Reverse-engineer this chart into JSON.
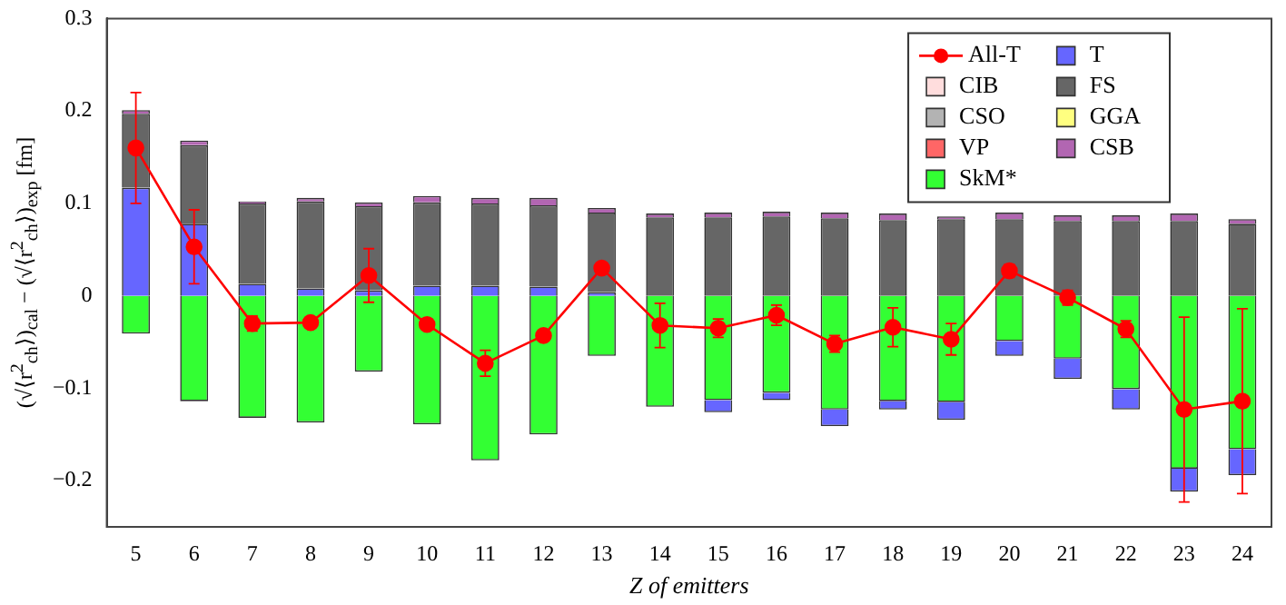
{
  "chart_data": {
    "type": "bar",
    "stacked": true,
    "xlabel": "Z of emitters",
    "ylabel": "(√⟨r$^{2}$$_{ch}$⟩)$_{cal}$ − (√⟨r$^{2}$$_{ch}$⟩)$_{exp}$ [fm]",
    "categories": [
      "5",
      "6",
      "7",
      "8",
      "9",
      "10",
      "11",
      "12",
      "13",
      "14",
      "15",
      "16",
      "17",
      "18",
      "19",
      "20",
      "21",
      "22",
      "23",
      "24"
    ],
    "ylim": [
      -0.25,
      0.3
    ],
    "yticks": [
      -0.2,
      -0.1,
      0,
      0.1,
      0.2,
      0.3
    ],
    "grid": false,
    "legend": "top right",
    "series": [
      {
        "name": "All-T",
        "type": "line",
        "color": "#ff0000",
        "marker": "circle",
        "values": [
          0.16,
          0.053,
          -0.03,
          -0.029,
          0.022,
          -0.031,
          -0.073,
          -0.043,
          0.03,
          -0.032,
          -0.035,
          -0.021,
          -0.052,
          -0.034,
          -0.047,
          0.027,
          -0.002,
          -0.036,
          -0.123,
          -0.114
        ],
        "errors": [
          0.06,
          0.04,
          0.008,
          0.003,
          0.029,
          0.003,
          0.014,
          0.003,
          0.003,
          0.024,
          0.01,
          0.011,
          0.009,
          0.021,
          0.017,
          0.007,
          0.008,
          0.009,
          0.1,
          0.1
        ]
      },
      {
        "name": "CIB",
        "color": "#ffdddd",
        "values": [
          0,
          0,
          0,
          0,
          0,
          0,
          0,
          0,
          0,
          0,
          0,
          0,
          0,
          0,
          0,
          0,
          0,
          0,
          0,
          0
        ]
      },
      {
        "name": "CSO",
        "color": "#b3b3b3",
        "values": [
          0,
          0,
          0,
          0,
          0,
          0,
          0,
          0,
          0,
          0,
          0,
          0,
          0,
          0,
          0,
          0,
          0,
          0,
          0,
          0
        ]
      },
      {
        "name": "VP",
        "color": "#ff6666",
        "values": [
          0,
          0,
          0,
          0,
          0,
          0,
          0,
          0,
          0,
          0,
          0,
          0,
          0,
          0,
          0,
          0,
          0,
          0,
          0,
          0
        ]
      },
      {
        "name": "SkM*",
        "color": "#33ff33",
        "values": [
          -0.041,
          -0.114,
          -0.132,
          -0.137,
          -0.082,
          -0.139,
          -0.178,
          -0.15,
          -0.065,
          -0.12,
          -0.113,
          -0.105,
          -0.123,
          -0.114,
          -0.115,
          -0.049,
          -0.068,
          -0.101,
          -0.187,
          -0.166
        ]
      },
      {
        "name": "T",
        "color": "#6666ff",
        "values": [
          0.117,
          0.078,
          0.013,
          0.008,
          0.006,
          0.011,
          0.011,
          0.01,
          0.004,
          0,
          -0.013,
          -0.008,
          -0.018,
          -0.009,
          -0.019,
          -0.016,
          -0.022,
          -0.022,
          -0.025,
          -0.028
        ]
      },
      {
        "name": "FS",
        "color": "#666666",
        "values": [
          0.08,
          0.085,
          0.087,
          0.094,
          0.091,
          0.09,
          0.089,
          0.088,
          0.086,
          0.085,
          0.085,
          0.086,
          0.084,
          0.082,
          0.083,
          0.083,
          0.081,
          0.081,
          0.081,
          0.078
        ]
      },
      {
        "name": "GGA",
        "color": "#ffff80",
        "values": [
          0,
          0,
          0,
          0,
          0,
          0,
          0,
          0,
          0,
          0,
          0,
          0,
          0,
          0,
          0,
          0,
          0,
          0,
          0,
          0
        ]
      },
      {
        "name": "CSB",
        "color": "#b266b2",
        "values": [
          0.004,
          0.005,
          0.002,
          0.004,
          0.004,
          0.007,
          0.006,
          0.008,
          0.005,
          0.004,
          0.005,
          0.005,
          0.006,
          0.007,
          0.003,
          0.007,
          0.006,
          0.006,
          0.008,
          0.005
        ]
      }
    ]
  }
}
